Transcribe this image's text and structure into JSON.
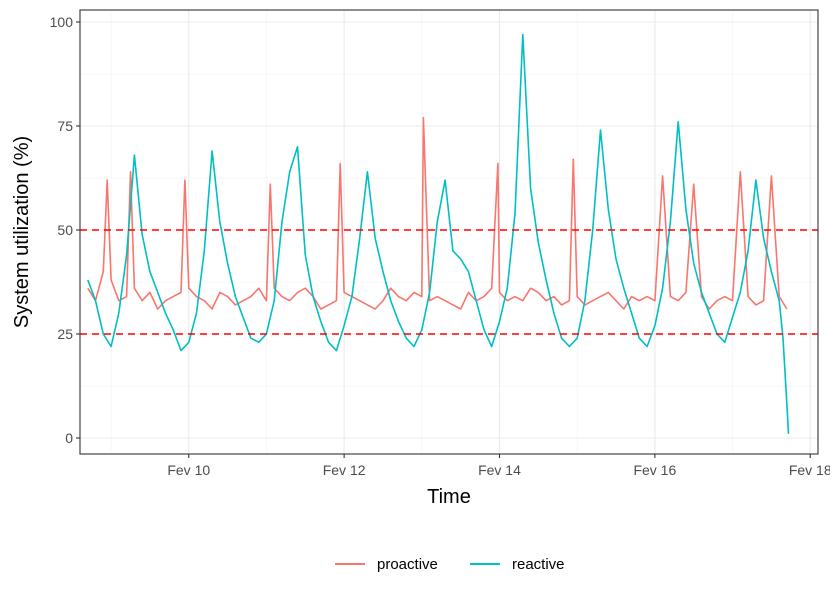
{
  "chart_data": {
    "type": "line",
    "title": "",
    "xlabel": "Time",
    "ylabel": "System utilization (%)",
    "xlim": [
      8.6,
      18.1
    ],
    "ylim": [
      0,
      100
    ],
    "x_unit": "days (Feb)",
    "x_ticks": [
      {
        "value": 10,
        "label": "Fev 10"
      },
      {
        "value": 12,
        "label": "Fev 12"
      },
      {
        "value": 14,
        "label": "Fev 14"
      },
      {
        "value": 16,
        "label": "Fev 16"
      },
      {
        "value": 18,
        "label": "Fev 18"
      }
    ],
    "y_ticks": [
      0,
      25,
      50,
      75,
      100
    ],
    "grid": true,
    "reference_lines": [
      {
        "y": 50,
        "style": "dashed",
        "color": "#ff0000"
      },
      {
        "y": 25,
        "style": "dashed",
        "color": "#ff0000"
      }
    ],
    "legend_position": "bottom",
    "series": [
      {
        "name": "proactive",
        "color": "#F8766D",
        "x": [
          8.7,
          8.8,
          8.9,
          8.95,
          9.0,
          9.1,
          9.2,
          9.25,
          9.3,
          9.4,
          9.5,
          9.6,
          9.7,
          9.8,
          9.9,
          9.95,
          10.0,
          10.1,
          10.2,
          10.3,
          10.4,
          10.5,
          10.6,
          10.7,
          10.8,
          10.9,
          11.0,
          11.05,
          11.1,
          11.2,
          11.3,
          11.4,
          11.5,
          11.6,
          11.7,
          11.8,
          11.9,
          11.95,
          12.0,
          12.1,
          12.2,
          12.3,
          12.4,
          12.5,
          12.6,
          12.7,
          12.8,
          12.9,
          13.0,
          13.02,
          13.1,
          13.2,
          13.3,
          13.4,
          13.5,
          13.6,
          13.7,
          13.8,
          13.9,
          13.98,
          14.0,
          14.1,
          14.2,
          14.3,
          14.4,
          14.5,
          14.6,
          14.7,
          14.8,
          14.9,
          14.95,
          15.0,
          15.1,
          15.2,
          15.3,
          15.4,
          15.5,
          15.6,
          15.7,
          15.8,
          15.9,
          16.0,
          16.1,
          16.2,
          16.3,
          16.4,
          16.5,
          16.6,
          16.7,
          16.8,
          16.9,
          17.0,
          17.1,
          17.2,
          17.3,
          17.4,
          17.5,
          17.6,
          17.7
        ],
        "values": [
          36,
          33,
          40,
          62,
          38,
          33,
          34,
          64,
          36,
          33,
          35,
          31,
          33,
          34,
          35,
          62,
          36,
          34,
          33,
          31,
          35,
          34,
          32,
          33,
          34,
          36,
          33,
          61,
          36,
          34,
          33,
          35,
          36,
          34,
          31,
          32,
          33,
          66,
          35,
          34,
          33,
          32,
          31,
          33,
          36,
          34,
          33,
          35,
          34,
          77,
          33,
          34,
          33,
          32,
          31,
          35,
          33,
          34,
          36,
          66,
          35,
          33,
          34,
          33,
          36,
          35,
          33,
          34,
          32,
          33,
          67,
          34,
          32,
          33,
          34,
          35,
          33,
          31,
          34,
          33,
          34,
          33,
          63,
          34,
          33,
          35,
          61,
          34,
          31,
          33,
          34,
          33,
          64,
          34,
          32,
          33,
          63,
          34,
          31
        ]
      },
      {
        "name": "reactive",
        "color": "#00BFC4",
        "x": [
          8.7,
          8.8,
          8.9,
          9.0,
          9.1,
          9.2,
          9.3,
          9.4,
          9.5,
          9.6,
          9.7,
          9.8,
          9.9,
          10.0,
          10.1,
          10.2,
          10.3,
          10.4,
          10.5,
          10.6,
          10.7,
          10.8,
          10.9,
          11.0,
          11.1,
          11.2,
          11.3,
          11.4,
          11.5,
          11.6,
          11.7,
          11.8,
          11.9,
          12.0,
          12.1,
          12.2,
          12.3,
          12.4,
          12.5,
          12.6,
          12.7,
          12.8,
          12.9,
          13.0,
          13.1,
          13.2,
          13.3,
          13.4,
          13.5,
          13.6,
          13.7,
          13.8,
          13.9,
          14.0,
          14.1,
          14.2,
          14.3,
          14.4,
          14.5,
          14.6,
          14.7,
          14.8,
          14.9,
          15.0,
          15.1,
          15.2,
          15.3,
          15.4,
          15.5,
          15.6,
          15.7,
          15.8,
          15.9,
          16.0,
          16.1,
          16.2,
          16.3,
          16.4,
          16.5,
          16.6,
          16.7,
          16.8,
          16.9,
          17.0,
          17.1,
          17.2,
          17.3,
          17.4,
          17.5,
          17.6,
          17.65,
          17.7,
          17.72
        ],
        "values": [
          38,
          33,
          25,
          22,
          30,
          44,
          68,
          49,
          40,
          35,
          30,
          26,
          21,
          23,
          30,
          45,
          69,
          52,
          42,
          34,
          29,
          24,
          23,
          25,
          33,
          52,
          64,
          70,
          44,
          34,
          28,
          23,
          21,
          27,
          34,
          48,
          64,
          48,
          40,
          33,
          28,
          24,
          22,
          26,
          35,
          52,
          62,
          45,
          43,
          40,
          33,
          26,
          22,
          28,
          36,
          54,
          97,
          60,
          47,
          38,
          30,
          24,
          22,
          24,
          33,
          50,
          74,
          55,
          43,
          36,
          30,
          24,
          22,
          27,
          36,
          52,
          76,
          55,
          42,
          35,
          30,
          25,
          23,
          29,
          35,
          45,
          62,
          48,
          40,
          33,
          24,
          8,
          1
        ]
      }
    ]
  }
}
